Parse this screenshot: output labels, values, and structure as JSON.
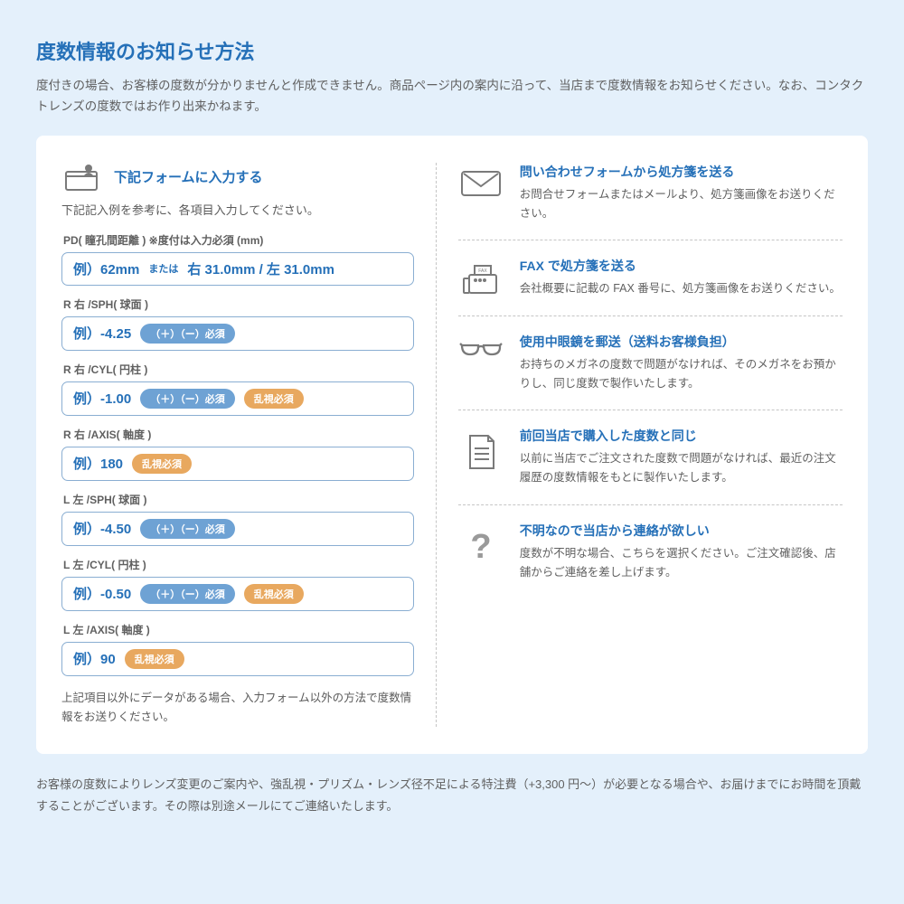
{
  "colors": {
    "page_bg": "#e4f0fb",
    "card_bg": "#ffffff",
    "primary": "#2570b8",
    "text": "#5a5a5a",
    "border": "#8aaed2",
    "pill_blue": "#6ea2d4",
    "pill_orange": "#e8a85f",
    "divider": "#c5c5c5",
    "icon_stroke": "#7a7a7a"
  },
  "title": "度数情報のお知らせ方法",
  "intro": "度付きの場合、お客様の度数が分かりませんと作成できません。商品ページ内の案内に沿って、当店まで度数情報をお知らせください。なお、コンタクトレンズの度数ではお作り出来かねます。",
  "left": {
    "title": "下記フォームに入力する",
    "sub": "下記記入例を参考に、各項目入力してください。",
    "fields": [
      {
        "label": "PD( 瞳孔間距離 ) ※度付は入力必須 (mm)",
        "example": "例）62mm",
        "sub": "または",
        "example2": "右 31.0mm / 左 31.0mm",
        "pills": []
      },
      {
        "label": "R 右 /SPH( 球面 )",
        "example": "例）-4.25",
        "pills": [
          {
            "type": "blue",
            "text": "（＋）（ー）必須"
          }
        ]
      },
      {
        "label": "R 右 /CYL( 円柱 )",
        "example": "例）-1.00",
        "pills": [
          {
            "type": "blue",
            "text": "（＋）（ー）必須"
          },
          {
            "type": "orange",
            "text": "乱視必須"
          }
        ]
      },
      {
        "label": "R 右 /AXIS( 軸度 )",
        "example": "例）180",
        "pills": [
          {
            "type": "orange",
            "text": "乱視必須"
          }
        ]
      },
      {
        "label": "L 左 /SPH( 球面 )",
        "example": "例）-4.50",
        "pills": [
          {
            "type": "blue",
            "text": "（＋）（ー）必須"
          }
        ]
      },
      {
        "label": "L 左 /CYL( 円柱 )",
        "example": "例）-0.50",
        "pills": [
          {
            "type": "blue",
            "text": "（＋）（ー）必須"
          },
          {
            "type": "orange",
            "text": "乱視必須"
          }
        ]
      },
      {
        "label": "L 左 /AXIS( 軸度 )",
        "example": "例）90",
        "pills": [
          {
            "type": "orange",
            "text": "乱視必須"
          }
        ]
      }
    ],
    "note": "上記項目以外にデータがある場合、入力フォーム以外の方法で度数情報をお送りください。"
  },
  "right": [
    {
      "icon": "mail",
      "title": "問い合わせフォームから処方箋を送る",
      "desc": "お問合せフォームまたはメールより、処方箋画像をお送りください。"
    },
    {
      "icon": "fax",
      "title": "FAX で処方箋を送る",
      "desc": "会社概要に記載の FAX 番号に、処方箋画像をお送りください。"
    },
    {
      "icon": "glasses",
      "title": "使用中眼鏡を郵送（送料お客様負担）",
      "desc": "お持ちのメガネの度数で問題がなければ、そのメガネをお預かりし、同じ度数で製作いたします。"
    },
    {
      "icon": "doc",
      "title": "前回当店で購入した度数と同じ",
      "desc": "以前に当店でご注文された度数で問題がなければ、最近の注文履歴の度数情報をもとに製作いたします。"
    },
    {
      "icon": "question",
      "title": "不明なので当店から連絡が欲しい",
      "desc": "度数が不明な場合、こちらを選択ください。ご注文確認後、店舗からご連絡を差し上げます。"
    }
  ],
  "footer": "お客様の度数によりレンズ変更のご案内や、強乱視・プリズム・レンズ径不足による特注費（+3,300 円～）が必要となる場合や、お届けまでにお時間を頂戴することがございます。その際は別途メールにてご連絡いたします。"
}
